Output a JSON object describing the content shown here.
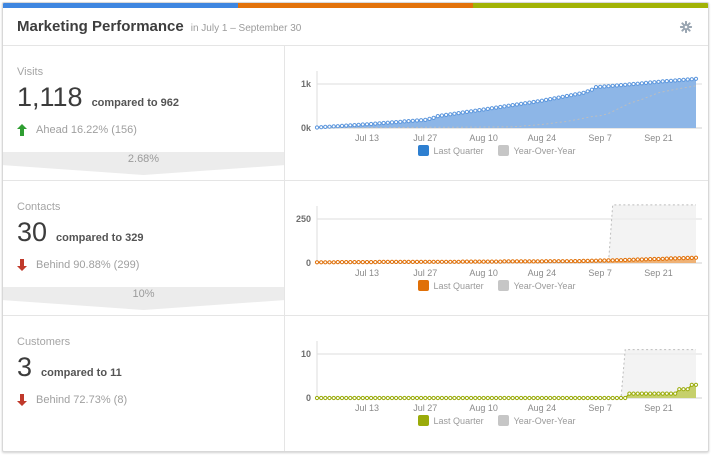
{
  "header": {
    "title": "Marketing Performance",
    "subtitle": "in July 1 – September 30",
    "bar_colors": [
      "#3e86e0",
      "#e2720a",
      "#a2b305"
    ],
    "gear_icon": "settings-gear"
  },
  "colors": {
    "up_arrow": "#2f9e32",
    "down_arrow": "#c0392b"
  },
  "metrics": [
    {
      "label": "Visits",
      "value": "1,118",
      "compare": "compared to 962",
      "direction": "up",
      "status": "Ahead 16.22% (156)",
      "funnel_pct": "2.68%"
    },
    {
      "label": "Contacts",
      "value": "30",
      "compare": "compared to 329",
      "direction": "down",
      "status": "Behind 90.88% (299)",
      "funnel_pct": "10%"
    },
    {
      "label": "Customers",
      "value": "3",
      "compare": "compared to 11",
      "direction": "down",
      "status": "Behind 72.73% (8)",
      "funnel_pct": null
    }
  ],
  "chart_data": [
    {
      "type": "area",
      "metric": "Visits",
      "x_range": "Jul 1 – Sep 30 (daily, cumulative)",
      "x_ticks": [
        {
          "day": 12,
          "label": "Jul 13"
        },
        {
          "day": 26,
          "label": "Jul 27"
        },
        {
          "day": 40,
          "label": "Aug 10"
        },
        {
          "day": 54,
          "label": "Aug 24"
        },
        {
          "day": 68,
          "label": "Sep 7"
        },
        {
          "day": 82,
          "label": "Sep 21"
        }
      ],
      "yticks": [
        {
          "value": 0,
          "label": "0k"
        },
        {
          "value": 1000,
          "label": "1k"
        }
      ],
      "scale_max": 1000,
      "legend": [
        {
          "label": "Last Quarter",
          "color": "#2e7fd0"
        },
        {
          "label": "Year-Over-Year",
          "color": "#c6c6c6"
        }
      ],
      "series": [
        {
          "name": "Last Quarter",
          "color": "#5b96dd",
          "fill": "#8db6e7",
          "marker": true,
          "values": [
            12,
            18,
            24,
            30,
            36,
            42,
            48,
            55,
            61,
            67,
            73,
            79,
            85,
            92,
            99,
            106,
            113,
            120,
            128,
            135,
            142,
            149,
            156,
            164,
            171,
            178,
            185,
            207,
            230,
            270,
            284,
            297,
            311,
            325,
            338,
            352,
            365,
            379,
            393,
            406,
            420,
            434,
            449,
            463,
            477,
            491,
            506,
            520,
            534,
            549,
            563,
            577,
            591,
            606,
            620,
            638,
            656,
            674,
            692,
            710,
            728,
            746,
            764,
            782,
            800,
            835,
            870,
            930,
            937,
            943,
            950,
            958,
            966,
            974,
            982,
            990,
            999,
            1007,
            1016,
            1024,
            1033,
            1041,
            1050,
            1058,
            1065,
            1073,
            1080,
            1088,
            1095,
            1103,
            1110,
            1118
          ]
        },
        {
          "name": "Year-Over-Year",
          "color": "#bdbdbd",
          "fill": null,
          "dashed": true,
          "values": [
            2,
            2,
            3,
            3,
            4,
            4,
            5,
            5,
            6,
            6,
            7,
            7,
            8,
            8,
            9,
            9,
            10,
            10,
            11,
            11,
            12,
            12,
            13,
            13,
            14,
            14,
            15,
            15,
            16,
            16,
            17,
            17,
            18,
            18,
            19,
            19,
            20,
            20,
            21,
            21,
            22,
            22,
            23,
            23,
            24,
            24,
            25,
            25,
            33,
            41,
            49,
            57,
            64,
            72,
            80,
            92,
            103,
            115,
            127,
            138,
            150,
            168,
            185,
            203,
            220,
            240,
            260,
            270,
            280,
            305,
            330,
            376,
            422,
            468,
            514,
            560,
            590,
            620,
            650,
            688,
            725,
            763,
            800,
            820,
            840,
            860,
            880,
            896,
            912,
            928,
            944,
            960
          ]
        }
      ]
    },
    {
      "type": "area",
      "metric": "Contacts",
      "x_range": "Jul 1 – Sep 30 (daily, cumulative)",
      "x_ticks": [
        {
          "day": 12,
          "label": "Jul 13"
        },
        {
          "day": 26,
          "label": "Jul 27"
        },
        {
          "day": 40,
          "label": "Aug 10"
        },
        {
          "day": 54,
          "label": "Aug 24"
        },
        {
          "day": 68,
          "label": "Sep 7"
        },
        {
          "day": 82,
          "label": "Sep 21"
        }
      ],
      "yticks": [
        {
          "value": 0,
          "label": "0"
        },
        {
          "value": 250,
          "label": "250"
        }
      ],
      "scale_max": 250,
      "legend": [
        {
          "label": "Last Quarter",
          "color": "#e07008"
        },
        {
          "label": "Year-Over-Year",
          "color": "#c6c6c6"
        }
      ],
      "series": [
        {
          "name": "Last Quarter",
          "color": "#e07008",
          "fill": "#efb276",
          "marker": true,
          "values": [
            4,
            4,
            4,
            4,
            4,
            5,
            5,
            5,
            5,
            5,
            5,
            5,
            5,
            5,
            5,
            6,
            6,
            6,
            6,
            6,
            6,
            6,
            6,
            6,
            6,
            7,
            7,
            7,
            7,
            7,
            7,
            7,
            7,
            7,
            7,
            8,
            8,
            8,
            8,
            8,
            8,
            8,
            8,
            8,
            8,
            9,
            9,
            9,
            9,
            9,
            9,
            9,
            9,
            9,
            9,
            10,
            10,
            10,
            10,
            10,
            10,
            10,
            11,
            11,
            12,
            12,
            13,
            13,
            14,
            14,
            15,
            15,
            16,
            16,
            17,
            18,
            19,
            20,
            20,
            21,
            22,
            23,
            23,
            24,
            25,
            26,
            26,
            27,
            28,
            29,
            29,
            30
          ]
        },
        {
          "name": "Year-Over-Year",
          "color": "#bdbdbd",
          "fill": "#ececec",
          "dashed": true,
          "values": [
            2,
            2,
            2,
            2,
            2,
            2,
            2,
            2,
            2,
            2,
            2,
            2,
            2,
            2,
            2,
            2,
            2,
            2,
            2,
            2,
            2,
            2,
            2,
            2,
            2,
            2,
            2,
            2,
            2,
            2,
            2,
            2,
            2,
            2,
            2,
            2,
            2,
            2,
            2,
            2,
            2,
            2,
            2,
            2,
            2,
            2,
            2,
            2,
            2,
            2,
            2,
            2,
            2,
            2,
            2,
            2,
            2,
            2,
            2,
            2,
            2,
            2,
            2,
            2,
            2,
            2,
            2,
            2,
            2,
            2,
            2,
            330,
            330,
            330,
            330,
            330,
            330,
            330,
            330,
            330,
            330,
            330,
            330,
            330,
            330,
            330,
            330,
            330,
            330,
            330,
            330,
            330
          ]
        }
      ]
    },
    {
      "type": "area",
      "metric": "Customers",
      "x_range": "Jul 1 – Sep 30 (daily, cumulative)",
      "x_ticks": [
        {
          "day": 12,
          "label": "Jul 13"
        },
        {
          "day": 26,
          "label": "Jul 27"
        },
        {
          "day": 40,
          "label": "Aug 10"
        },
        {
          "day": 54,
          "label": "Aug 24"
        },
        {
          "day": 68,
          "label": "Sep 7"
        },
        {
          "day": 82,
          "label": "Sep 21"
        }
      ],
      "yticks": [
        {
          "value": 0,
          "label": "0"
        },
        {
          "value": 10,
          "label": "10"
        }
      ],
      "scale_max": 10,
      "legend": [
        {
          "label": "Last Quarter",
          "color": "#9aab0a"
        },
        {
          "label": "Year-Over-Year",
          "color": "#c6c6c6"
        }
      ],
      "series": [
        {
          "name": "Last Quarter",
          "color": "#9aab0a",
          "fill": "#c6d06b",
          "marker": true,
          "values": [
            0,
            0,
            0,
            0,
            0,
            0,
            0,
            0,
            0,
            0,
            0,
            0,
            0,
            0,
            0,
            0,
            0,
            0,
            0,
            0,
            0,
            0,
            0,
            0,
            0,
            0,
            0,
            0,
            0,
            0,
            0,
            0,
            0,
            0,
            0,
            0,
            0,
            0,
            0,
            0,
            0,
            0,
            0,
            0,
            0,
            0,
            0,
            0,
            0,
            0,
            0,
            0,
            0,
            0,
            0,
            0,
            0,
            0,
            0,
            0,
            0,
            0,
            0,
            0,
            0,
            0,
            0,
            0,
            0,
            0,
            0,
            0,
            0,
            0,
            0,
            1,
            1,
            1,
            1,
            1,
            1,
            1,
            1,
            1,
            1,
            1,
            1,
            2,
            2,
            2,
            3,
            3
          ]
        },
        {
          "name": "Year-Over-Year",
          "color": "#bdbdbd",
          "fill": "#ececec",
          "dashed": true,
          "values": [
            0,
            0,
            0,
            0,
            0,
            0,
            0,
            0,
            0,
            0,
            0,
            0,
            0,
            0,
            0,
            0,
            0,
            0,
            0,
            0,
            0,
            0,
            0,
            0,
            0,
            0,
            0,
            0,
            0,
            0,
            0,
            0,
            0,
            0,
            0,
            0,
            0,
            0,
            0,
            0,
            0,
            0,
            0,
            0,
            0,
            0,
            0,
            0,
            0,
            0,
            0,
            0,
            0,
            0,
            0,
            0,
            0,
            0,
            0,
            0,
            0,
            0,
            0,
            0,
            0,
            0,
            0,
            0,
            0,
            0,
            0,
            0,
            0,
            0,
            11,
            11,
            11,
            11,
            11,
            11,
            11,
            11,
            11,
            11,
            11,
            11,
            11,
            11,
            11,
            11,
            11,
            11
          ]
        }
      ]
    }
  ]
}
